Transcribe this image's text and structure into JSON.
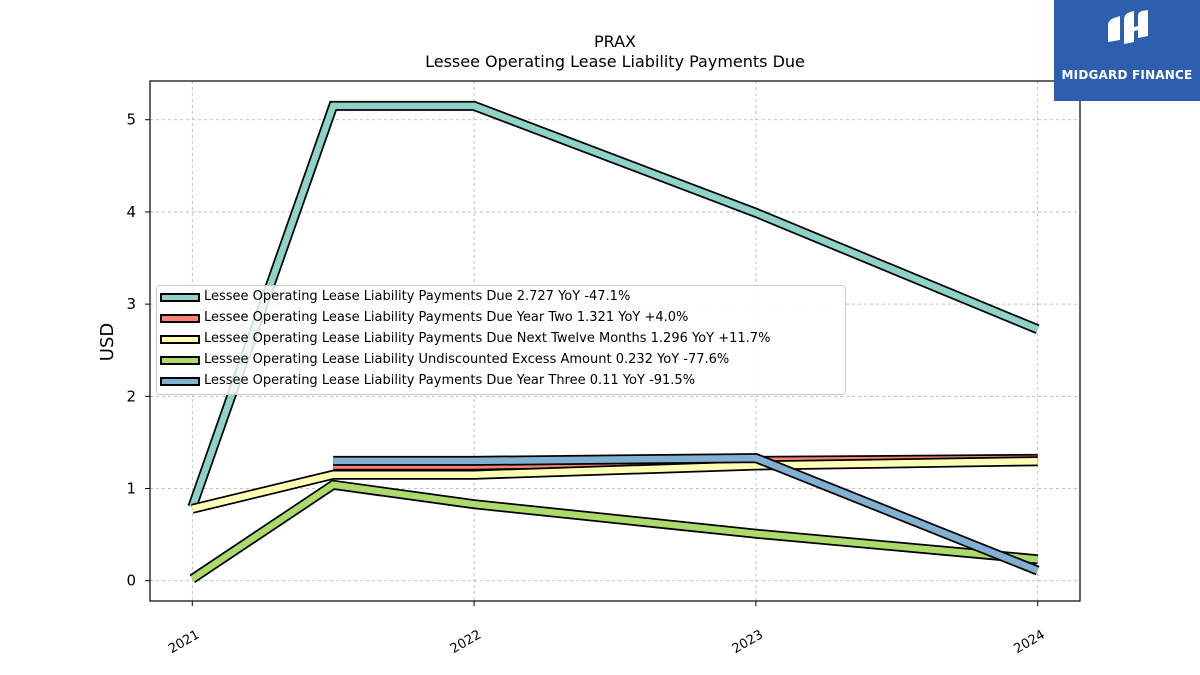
{
  "chart_data": {
    "type": "line",
    "title": "PRAX",
    "subtitle": "Lessee Operating Lease Liability Payments Due",
    "xlabel": "",
    "ylabel": "USD",
    "x_ticks": [
      "2021",
      "2022",
      "2023",
      "2024"
    ],
    "xlim": [
      2020.85,
      2024.15
    ],
    "ylim": [
      -0.22,
      5.42
    ],
    "y_ticks": [
      0,
      1,
      2,
      3,
      4,
      5
    ],
    "grid": true,
    "legend_position": "center-left",
    "series": [
      {
        "name": "Lessee Operating Lease Liability Payments Due  2.727 YoY -47.1%",
        "color": "#8dd3c7",
        "points": [
          [
            2021.0,
            0.8
          ],
          [
            2021.5,
            5.15
          ],
          [
            2022.0,
            5.15
          ],
          [
            2023.0,
            3.99
          ],
          [
            2024.0,
            2.727
          ]
        ]
      },
      {
        "name": "Lessee Operating Lease Liability Payments Due Year Two  1.321 YoY +4.0%",
        "color": "#fb8072",
        "points": [
          [
            2021.5,
            1.25
          ],
          [
            2022.0,
            1.25
          ],
          [
            2023.0,
            1.3
          ],
          [
            2024.0,
            1.321
          ]
        ]
      },
      {
        "name": "Lessee Operating Lease Liability Payments Due Next Twelve Months  1.296 YoY +11.7%",
        "color": "#ffffb3",
        "points": [
          [
            2021.0,
            0.78
          ],
          [
            2021.5,
            1.15
          ],
          [
            2022.0,
            1.15
          ],
          [
            2023.0,
            1.25
          ],
          [
            2024.0,
            1.296
          ]
        ]
      },
      {
        "name": "Lessee Operating Lease Liability Undiscounted Excess Amount  0.232 YoY -77.6%",
        "color": "#addb6b",
        "points": [
          [
            2021.0,
            0.02
          ],
          [
            2021.5,
            1.04
          ],
          [
            2022.0,
            0.83
          ],
          [
            2023.0,
            0.51
          ],
          [
            2024.0,
            0.232
          ]
        ]
      },
      {
        "name": "Lessee Operating Lease Liability Payments Due Year Three  0.11 YoY -91.5%",
        "color": "#80b1d3",
        "points": [
          [
            2021.5,
            1.3
          ],
          [
            2022.0,
            1.3
          ],
          [
            2023.0,
            1.33
          ],
          [
            2024.0,
            0.11
          ]
        ]
      }
    ]
  },
  "logo": {
    "text": "MIDGARD FINANCE"
  }
}
